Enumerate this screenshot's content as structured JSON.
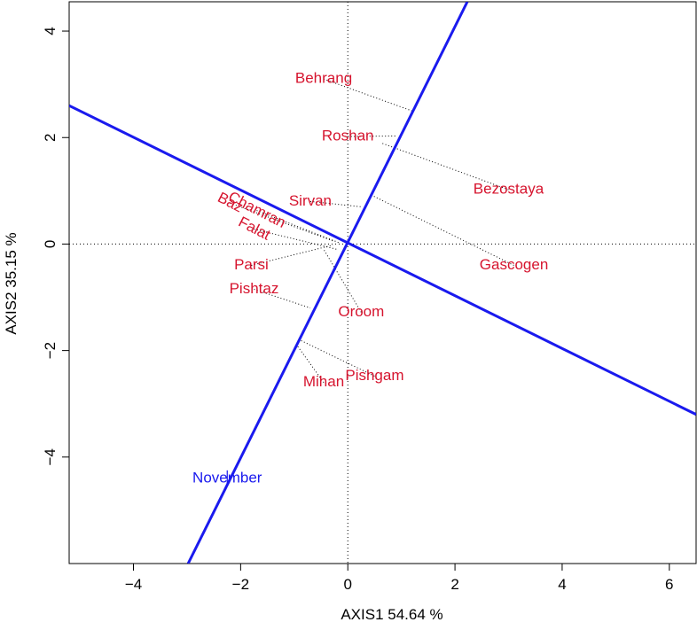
{
  "chart_data": {
    "type": "scatter",
    "title": "",
    "xlabel": "AXIS1 54.64 %",
    "ylabel": "AXIS2 35.15 %",
    "xlim": [
      -5.2,
      6.5
    ],
    "ylim": [
      -6.0,
      4.55
    ],
    "x_ticks": [
      -4,
      -2,
      0,
      2,
      4,
      6
    ],
    "y_ticks": [
      -4,
      -2,
      0,
      2,
      4
    ],
    "x_tick_labels": [
      "−4",
      "−2",
      "0",
      "2",
      "4",
      "6"
    ],
    "y_tick_labels": [
      "−4",
      "−2",
      "0",
      "2",
      "4"
    ],
    "grid": false,
    "reference_lines": {
      "x": 0,
      "y": 0,
      "style": "dotted"
    },
    "colors": {
      "genotype": "#d6142e",
      "environment": "#1a1aee",
      "axis_lines": "#1a1aee",
      "projection": "#000000"
    },
    "genotypes": [
      {
        "name": "Behrang",
        "x": -0.45,
        "y": 3.1,
        "rotation": 0,
        "projection": [
          1.2,
          2.5
        ]
      },
      {
        "name": "Roshan",
        "x": 0.0,
        "y": 2.02,
        "rotation": 0,
        "projection": [
          0.9,
          2.03
        ]
      },
      {
        "name": "Bezostaya",
        "x": 3.0,
        "y": 1.02,
        "rotation": 0,
        "projection": [
          0.62,
          1.9
        ]
      },
      {
        "name": "Sirvan",
        "x": -0.7,
        "y": 0.8,
        "rotation": 0,
        "projection": [
          0.25,
          0.7
        ]
      },
      {
        "name": "Gascogen",
        "x": 3.1,
        "y": -0.4,
        "rotation": 0,
        "projection": [
          0.48,
          0.9
        ]
      },
      {
        "name": "Baz",
        "x": -2.2,
        "y": 0.77,
        "rotation": 27,
        "projection": [
          -0.28,
          0.06
        ]
      },
      {
        "name": "Chamran",
        "x": -1.7,
        "y": 0.63,
        "rotation": 27,
        "projection": [
          -0.15,
          0.02
        ]
      },
      {
        "name": "Falat",
        "x": -1.75,
        "y": 0.28,
        "rotation": 27,
        "projection": [
          -0.2,
          -0.1
        ]
      },
      {
        "name": "Parsi",
        "x": -1.8,
        "y": -0.4,
        "rotation": 0,
        "projection": [
          -0.28,
          -0.02
        ]
      },
      {
        "name": "Pishtaz",
        "x": -1.75,
        "y": -0.85,
        "rotation": 0,
        "projection": [
          -0.7,
          -1.2
        ]
      },
      {
        "name": "Oroom",
        "x": 0.25,
        "y": -1.28,
        "rotation": 0,
        "projection": [
          -0.45,
          -0.1
        ]
      },
      {
        "name": "Pishgam",
        "x": 0.5,
        "y": -2.48,
        "rotation": 0,
        "projection": [
          -0.9,
          -1.8
        ]
      },
      {
        "name": "Mihan",
        "x": -0.45,
        "y": -2.6,
        "rotation": 0,
        "projection": [
          -0.95,
          -1.9
        ]
      }
    ],
    "environments": [
      {
        "name": "November",
        "x": -2.25,
        "y": -4.4
      }
    ],
    "axis_lines": [
      {
        "x1": -5.2,
        "y1": 2.6,
        "x2": 6.5,
        "y2": -3.2
      },
      {
        "x1": -2.98,
        "y1": -6.0,
        "x2": 2.23,
        "y2": 4.55
      }
    ]
  }
}
